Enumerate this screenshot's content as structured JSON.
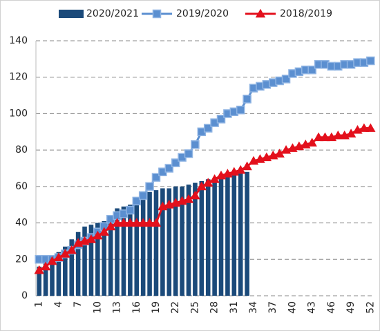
{
  "chart_data": {
    "type": "bar",
    "categories": [
      "1",
      null,
      null,
      "4",
      null,
      null,
      "7",
      null,
      null,
      "10",
      null,
      null,
      "13",
      null,
      null,
      "16",
      null,
      null,
      "19",
      null,
      null,
      "22",
      null,
      null,
      "25",
      null,
      null,
      "28",
      null,
      null,
      "31",
      null,
      null,
      "34",
      null,
      null,
      "37",
      null,
      null,
      "40",
      null,
      null,
      "43",
      null,
      null,
      "46",
      null,
      null,
      "49",
      null,
      null,
      "52"
    ],
    "series": [
      {
        "name": "2020/2021",
        "type": "bar",
        "color": "#1b4a7a",
        "values": [
          16,
          18,
          21,
          24,
          27,
          31,
          35,
          38,
          39,
          40,
          41,
          44,
          48,
          49,
          50,
          52,
          55,
          57,
          58,
          59,
          59,
          60,
          60,
          61,
          62,
          63,
          64,
          64,
          65,
          66,
          67,
          67,
          68,
          null,
          null,
          null,
          null,
          null,
          null,
          null,
          null,
          null,
          null,
          null,
          null,
          null,
          null,
          null,
          null,
          null,
          null,
          null
        ]
      },
      {
        "name": "2019/2020",
        "type": "line",
        "marker": "square",
        "color": "#5b8fd0",
        "values": [
          20,
          20,
          20,
          21,
          23,
          25,
          28,
          30,
          32,
          35,
          38,
          42,
          44,
          45,
          47,
          52,
          55,
          60,
          65,
          68,
          70,
          73,
          76,
          78,
          83,
          90,
          92,
          95,
          97,
          100,
          101,
          102,
          108,
          114,
          115,
          116,
          117,
          118,
          119,
          122,
          123,
          124,
          124,
          127,
          127,
          126,
          126,
          127,
          127,
          128,
          128,
          129
        ]
      },
      {
        "name": "2018/2019",
        "type": "line",
        "marker": "triangle",
        "color": "#e3101c",
        "values": [
          14,
          16,
          19,
          21,
          23,
          25,
          29,
          30,
          31,
          33,
          35,
          38,
          40,
          40,
          40,
          40,
          40,
          40,
          40,
          49,
          50,
          51,
          52,
          53,
          55,
          60,
          62,
          64,
          66,
          67,
          68,
          69,
          71,
          74,
          75,
          76,
          77,
          78,
          80,
          81,
          82,
          83,
          84,
          87,
          87,
          87,
          88,
          88,
          89,
          91,
          92,
          92
        ]
      }
    ],
    "ylim": [
      0,
      140
    ],
    "yticks": [
      0,
      20,
      40,
      60,
      80,
      100,
      120,
      140
    ],
    "grid": true
  }
}
